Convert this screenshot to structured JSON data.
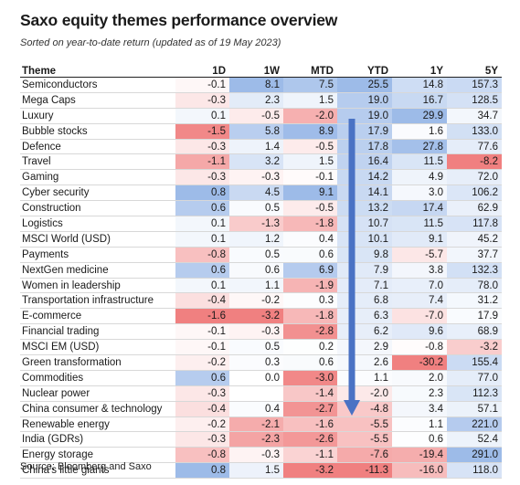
{
  "title": "Saxo equity themes performance overview",
  "subtitle": "Sorted on year-to-date return (updated as of 19 May 2023)",
  "source": "Source: Bloomberg and Saxo",
  "chart_data": {
    "type": "table",
    "columns": [
      "Theme",
      "1D",
      "1W",
      "MTD",
      "YTD",
      "1Y",
      "5Y"
    ],
    "rows": [
      {
        "theme": "Semiconductors",
        "values": [
          -0.1,
          8.1,
          7.5,
          25.5,
          14.8,
          157.3
        ]
      },
      {
        "theme": "Mega Caps",
        "values": [
          -0.3,
          2.3,
          1.5,
          19.0,
          16.7,
          128.5
        ]
      },
      {
        "theme": "Luxury",
        "values": [
          0.1,
          -0.5,
          -2.0,
          19.0,
          29.9,
          34.7
        ]
      },
      {
        "theme": "Bubble stocks",
        "values": [
          -1.5,
          5.8,
          8.9,
          17.9,
          1.6,
          133.0
        ]
      },
      {
        "theme": "Defence",
        "values": [
          -0.3,
          1.4,
          -0.5,
          17.8,
          27.8,
          77.6
        ]
      },
      {
        "theme": "Travel",
        "values": [
          -1.1,
          3.2,
          1.5,
          16.4,
          11.5,
          -8.2
        ]
      },
      {
        "theme": "Gaming",
        "values": [
          -0.3,
          -0.3,
          -0.1,
          14.2,
          4.9,
          72.0
        ]
      },
      {
        "theme": "Cyber security",
        "values": [
          0.8,
          4.5,
          9.1,
          14.1,
          3.0,
          106.2
        ]
      },
      {
        "theme": "Construction",
        "values": [
          0.6,
          0.5,
          -0.5,
          13.2,
          17.4,
          62.9
        ]
      },
      {
        "theme": "Logistics",
        "values": [
          0.1,
          -1.3,
          -1.8,
          10.7,
          11.5,
          117.8
        ]
      },
      {
        "theme": "MSCI World (USD)",
        "values": [
          0.1,
          1.2,
          0.4,
          10.1,
          9.1,
          45.2
        ]
      },
      {
        "theme": "Payments",
        "values": [
          -0.8,
          0.5,
          0.6,
          9.8,
          -5.7,
          37.7
        ]
      },
      {
        "theme": "NextGen medicine",
        "values": [
          0.6,
          0.6,
          6.9,
          7.9,
          3.8,
          132.3
        ]
      },
      {
        "theme": "Women in leadership",
        "values": [
          0.1,
          1.1,
          -1.9,
          7.1,
          7.0,
          78.0
        ]
      },
      {
        "theme": "Transportation infrastructure",
        "values": [
          -0.4,
          -0.2,
          0.3,
          6.8,
          7.4,
          31.2
        ]
      },
      {
        "theme": "E-commerce",
        "values": [
          -1.6,
          -3.2,
          -1.8,
          6.3,
          -7.0,
          17.9
        ]
      },
      {
        "theme": "Financial trading",
        "values": [
          -0.1,
          -0.3,
          -2.8,
          6.2,
          9.6,
          68.9
        ]
      },
      {
        "theme": "MSCI EM (USD)",
        "values": [
          -0.1,
          0.5,
          0.2,
          2.9,
          -0.8,
          -3.2
        ]
      },
      {
        "theme": "Green transformation",
        "values": [
          -0.2,
          0.3,
          0.6,
          2.6,
          -30.2,
          155.4
        ]
      },
      {
        "theme": "Commodities",
        "values": [
          0.6,
          0.0,
          -3.0,
          1.1,
          2.0,
          77.0
        ]
      },
      {
        "theme": "Nuclear power",
        "values": [
          -0.3,
          null,
          -1.4,
          -2.0,
          2.3,
          112.3
        ]
      },
      {
        "theme": "China consumer & technology",
        "values": [
          -0.4,
          0.4,
          -2.7,
          -4.8,
          3.4,
          57.1
        ]
      },
      {
        "theme": "Renewable energy",
        "values": [
          -0.2,
          -2.1,
          -1.6,
          -5.5,
          1.1,
          221.0
        ]
      },
      {
        "theme": "India (GDRs)",
        "values": [
          -0.3,
          -2.3,
          -2.6,
          -5.5,
          0.6,
          52.4
        ]
      },
      {
        "theme": "Energy storage",
        "values": [
          -0.8,
          -0.3,
          -1.1,
          -7.6,
          -19.4,
          291.0
        ]
      },
      {
        "theme": "China's little giants",
        "values": [
          0.8,
          1.5,
          -3.2,
          -11.3,
          -16.0,
          118.0
        ]
      }
    ]
  },
  "colors": {
    "positive": "#9dbbe8",
    "negative": "#f08080",
    "arrow": "#4a72c4"
  }
}
